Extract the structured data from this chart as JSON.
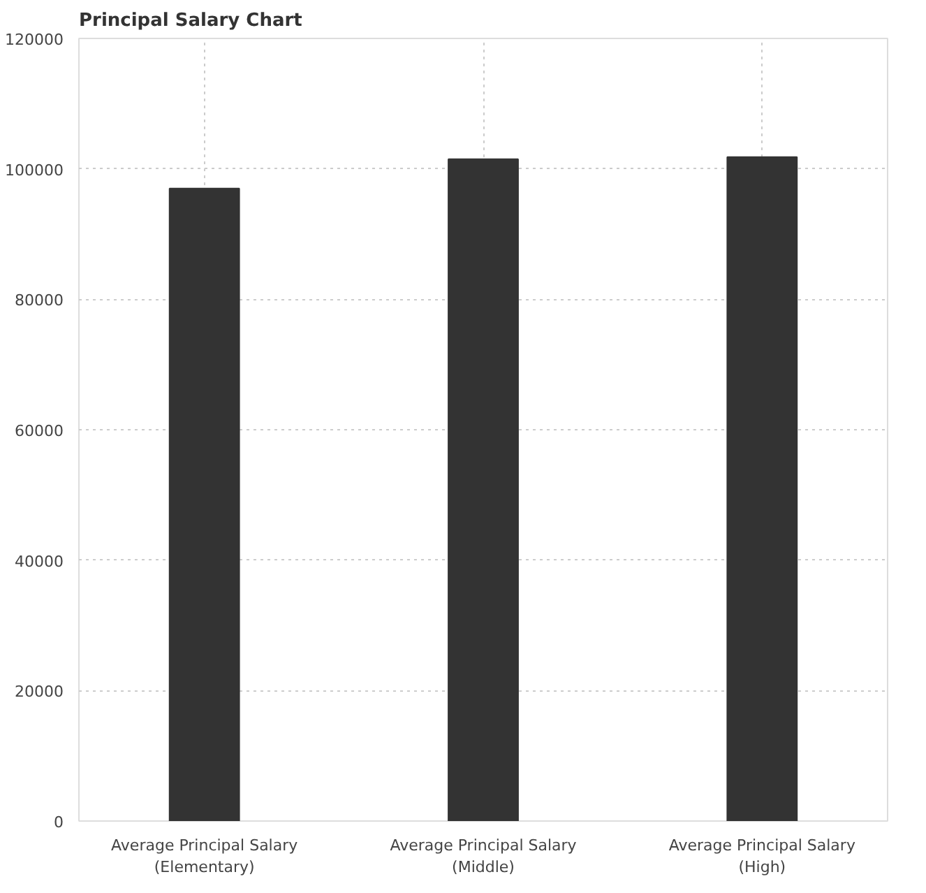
{
  "chart_data": {
    "type": "bar",
    "title": "Principal Salary Chart",
    "categories": [
      "Average Principal Salary\n(Elementary)",
      "Average Principal Salary\n(Middle)",
      "Average Principal Salary\n(High)"
    ],
    "values": [
      97000,
      101500,
      101800
    ],
    "color": "#333333",
    "ylim": [
      0,
      120000
    ],
    "yticks": [
      0,
      20000,
      40000,
      60000,
      80000,
      100000,
      120000
    ],
    "grid": true
  }
}
